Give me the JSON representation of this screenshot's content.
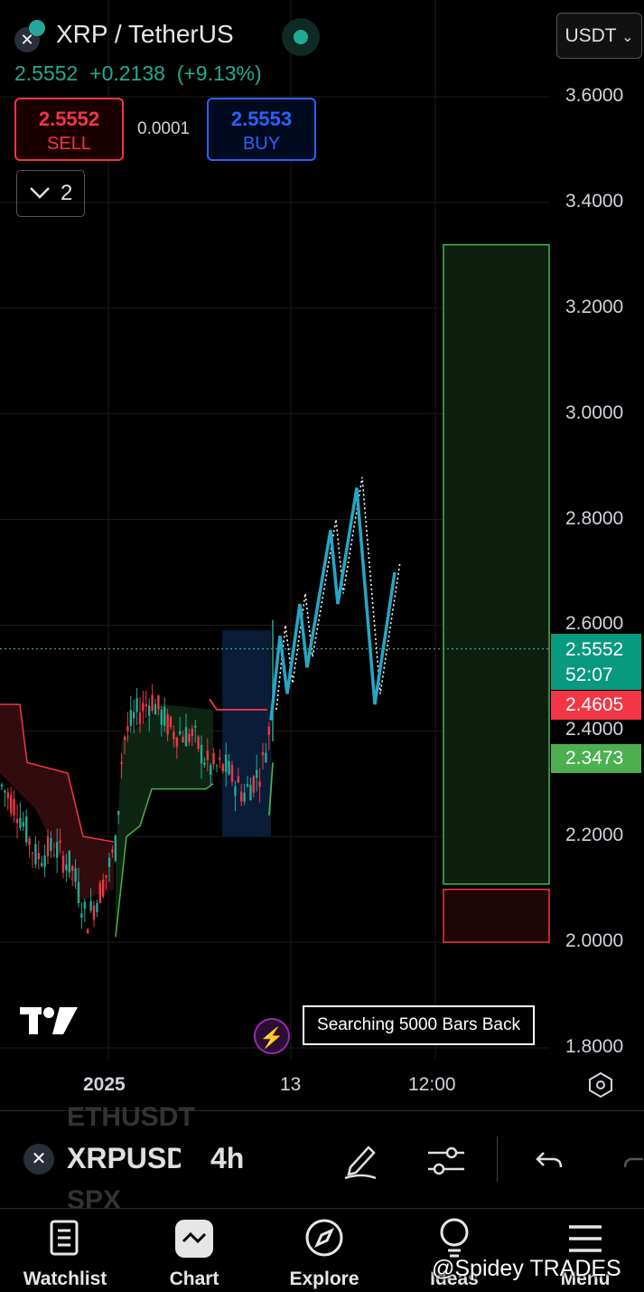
{
  "header": {
    "pair": "XRP / TetherUS",
    "last_price": "2.5552",
    "change": "+0.2138",
    "change_pct": "(+9.13%)",
    "currency": "USDT",
    "indicator_count": "2",
    "sell": {
      "price": "2.5552",
      "label": "SELL"
    },
    "buy": {
      "price": "2.5553",
      "label": "BUY"
    },
    "spread": "0.0001"
  },
  "price_axis": [
    "3.6000",
    "3.4000",
    "3.2000",
    "3.0000",
    "2.8000",
    "2.6000",
    "2.4000",
    "2.2000",
    "2.0000",
    "1.8000"
  ],
  "tags": {
    "current_price": "2.5552",
    "countdown": "52:07",
    "red_level": "2.4605",
    "green_level": "2.3473"
  },
  "time_axis": [
    "2025",
    "13",
    "12:00"
  ],
  "search_status": "Searching 5000 Bars Back",
  "toolbar": {
    "symbol": "XRPUSDT",
    "interval": "4h",
    "ghost_above": "ETHUSDT",
    "ghost_below": "SPX"
  },
  "nav": [
    {
      "label": "Watchlist",
      "icon": "watchlist-icon"
    },
    {
      "label": "Chart",
      "icon": "chart-icon"
    },
    {
      "label": "Explore",
      "icon": "compass-icon"
    },
    {
      "label": "Ideas",
      "icon": "lightbulb-icon"
    },
    {
      "label": "Menu",
      "icon": "menu-icon"
    }
  ],
  "watermark": "@Spidey TRADES",
  "colors": {
    "up": "#22ab94",
    "down": "#f23645",
    "buy": "#2962ff",
    "projection": "#26a6c5",
    "target_zone": "#4caf50",
    "stop_zone": "#f23645"
  },
  "chart_data": {
    "type": "candlestick",
    "symbol": "XRPUSDT",
    "interval": "4h",
    "ylim": [
      1.8,
      3.6
    ],
    "current_price": 2.5552,
    "projection_path": [
      2.42,
      2.58,
      2.47,
      2.64,
      2.52,
      2.78,
      2.64,
      2.86,
      2.45,
      2.7
    ],
    "target_zone": [
      2.11,
      3.32
    ],
    "stop_zone": [
      2.0,
      2.11
    ]
  }
}
